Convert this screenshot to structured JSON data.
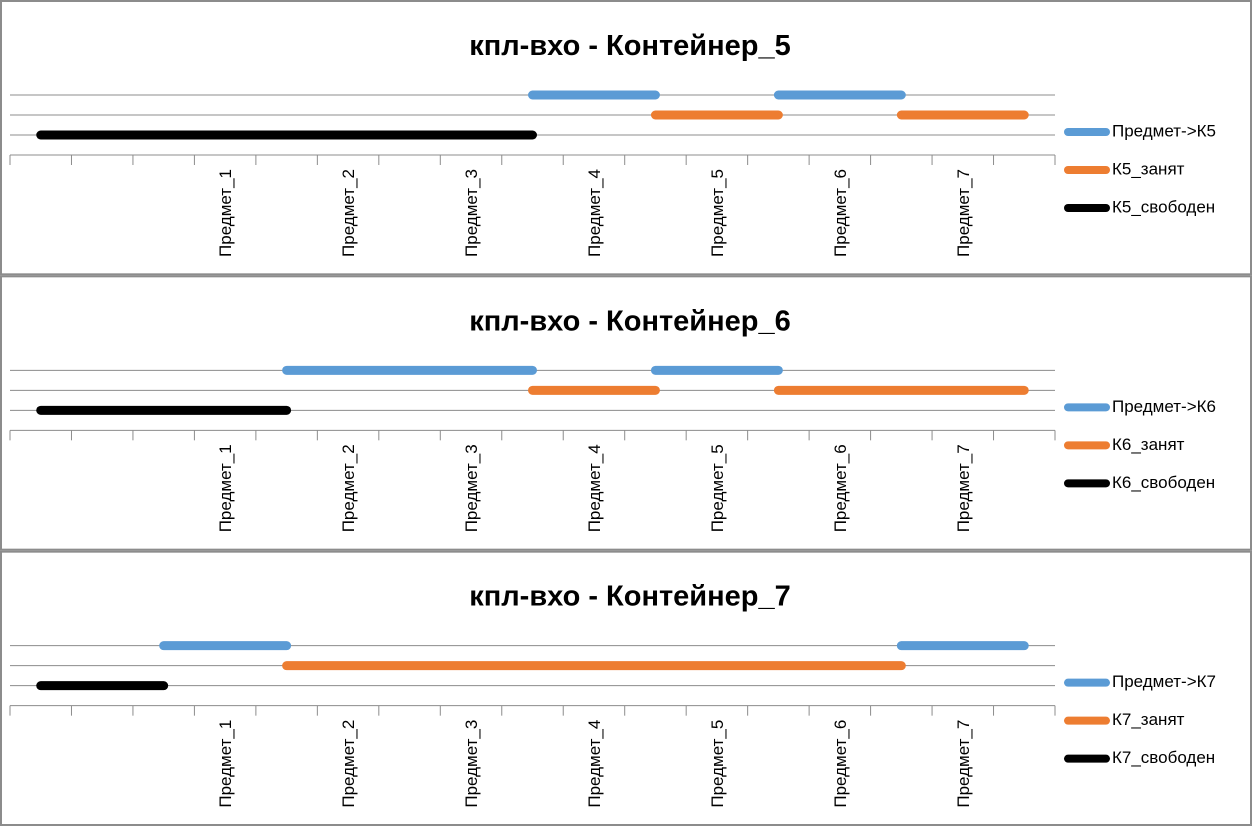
{
  "chart_data": [
    {
      "type": "line",
      "title": "кпл-вхо - Контейнер_5",
      "categories": [
        null,
        null,
        null,
        "Предмет_1",
        null,
        "Предмет_2",
        null,
        "Предмет_3",
        null,
        "Предмет_4",
        null,
        "Предмет_5",
        null,
        "Предмет_6",
        null,
        "Предмет_7",
        null
      ],
      "series": [
        {
          "name": "Предмет->К5",
          "color": "#5b9bd5",
          "values": [
            null,
            null,
            null,
            null,
            null,
            null,
            null,
            null,
            3,
            3,
            3,
            null,
            3,
            3,
            3,
            null,
            null
          ]
        },
        {
          "name": "К5_занят",
          "color": "#ed7d31",
          "values": [
            null,
            null,
            null,
            null,
            null,
            null,
            null,
            null,
            null,
            null,
            2,
            2,
            2,
            null,
            2,
            2,
            2
          ]
        },
        {
          "name": "К5_свободен",
          "color": "#000000",
          "values": [
            1,
            1,
            1,
            1,
            1,
            1,
            1,
            1,
            1,
            null,
            null,
            null,
            null,
            null,
            null,
            null,
            null
          ]
        }
      ],
      "ylim": [
        0,
        3
      ],
      "yticks": [
        1,
        2,
        3
      ],
      "grid": true,
      "legend": "right"
    },
    {
      "type": "line",
      "title": "кпл-вхо - Контейнер_6",
      "categories": [
        null,
        null,
        null,
        "Предмет_1",
        null,
        "Предмет_2",
        null,
        "Предмет_3",
        null,
        "Предмет_4",
        null,
        "Предмет_5",
        null,
        "Предмет_6",
        null,
        "Предмет_7",
        null
      ],
      "series": [
        {
          "name": "Предмет->К6",
          "color": "#5b9bd5",
          "values": [
            null,
            null,
            null,
            null,
            3,
            3,
            3,
            3,
            3,
            null,
            3,
            3,
            3,
            null,
            null,
            null,
            null
          ]
        },
        {
          "name": "К6_занят",
          "color": "#ed7d31",
          "values": [
            null,
            null,
            null,
            null,
            null,
            null,
            null,
            null,
            2,
            2,
            2,
            null,
            2,
            2,
            2,
            2,
            2
          ]
        },
        {
          "name": "К6_свободен",
          "color": "#000000",
          "values": [
            1,
            1,
            1,
            1,
            1,
            null,
            null,
            null,
            null,
            null,
            null,
            null,
            null,
            null,
            null,
            null,
            null
          ]
        }
      ],
      "ylim": [
        0,
        3
      ],
      "yticks": [
        1,
        2,
        3
      ],
      "grid": true,
      "legend": "right"
    },
    {
      "type": "line",
      "title": "кпл-вхо - Контейнер_7",
      "categories": [
        null,
        null,
        null,
        "Предмет_1",
        null,
        "Предмет_2",
        null,
        "Предмет_3",
        null,
        "Предмет_4",
        null,
        "Предмет_5",
        null,
        "Предмет_6",
        null,
        "Предмет_7",
        null
      ],
      "series": [
        {
          "name": "Предмет->К7",
          "color": "#5b9bd5",
          "values": [
            null,
            null,
            3,
            3,
            3,
            null,
            null,
            null,
            null,
            null,
            null,
            null,
            null,
            null,
            3,
            3,
            3
          ]
        },
        {
          "name": "К7_занят",
          "color": "#ed7d31",
          "values": [
            null,
            null,
            null,
            null,
            2,
            2,
            2,
            2,
            2,
            2,
            2,
            2,
            2,
            2,
            2,
            null,
            null
          ]
        },
        {
          "name": "К7_свободен",
          "color": "#000000",
          "values": [
            1,
            1,
            1,
            null,
            null,
            null,
            null,
            null,
            null,
            null,
            null,
            null,
            null,
            null,
            null,
            null,
            null
          ]
        }
      ],
      "ylim": [
        0,
        3
      ],
      "yticks": [
        1,
        2,
        3
      ],
      "grid": true,
      "legend": "right"
    }
  ]
}
